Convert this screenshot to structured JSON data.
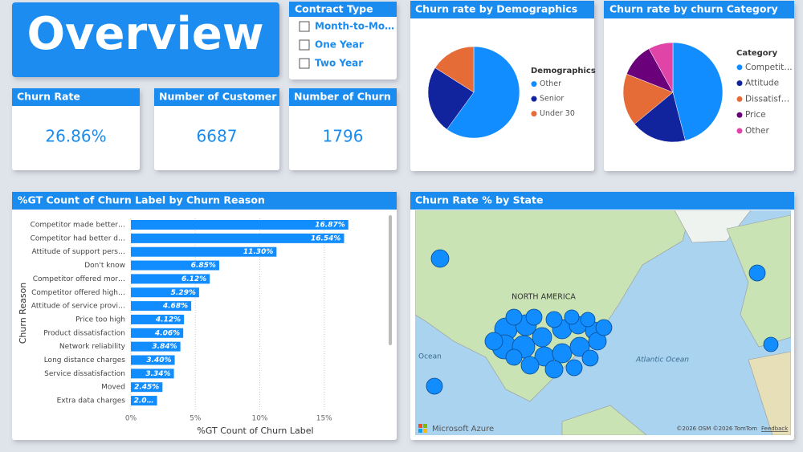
{
  "header": {
    "title": "Overview"
  },
  "slicer": {
    "title": "Contract Type",
    "items": [
      "Month-to-Mo…",
      "One Year",
      "Two Year"
    ]
  },
  "cards": [
    {
      "title": "Churn Rate",
      "value": "26.86%"
    },
    {
      "title": "Number of Customer",
      "value": "6687"
    },
    {
      "title": "Number of Churn",
      "value": "1796"
    }
  ],
  "chart_data": [
    {
      "type": "pie",
      "title": "Churn rate by Demographics",
      "legend_title": "Demographics",
      "categories": [
        "Other",
        "Senior",
        "Under 30"
      ],
      "values": [
        60,
        24,
        16
      ],
      "colors": [
        "#118DFF",
        "#12239E",
        "#E66C37"
      ]
    },
    {
      "type": "pie",
      "title": "Churn rate by churn Category",
      "legend_title": "Category",
      "categories": [
        "Competit…",
        "Attitude",
        "Dissatisf…",
        "Price",
        "Other"
      ],
      "values": [
        46,
        18,
        17,
        11,
        8
      ],
      "colors": [
        "#118DFF",
        "#12239E",
        "#E66C37",
        "#6B007B",
        "#E044A7"
      ]
    },
    {
      "type": "bar",
      "orientation": "horizontal",
      "title": "%GT Count of Churn Label by Churn Reason",
      "y_label": "Churn Reason",
      "x_label": "%GT Count of Churn Label",
      "categories": [
        "Competitor made better…",
        "Competitor had better d…",
        "Attitude of support pers…",
        "Don't know",
        "Competitor offered mor…",
        "Competitor offered high…",
        "Attitude of service provi…",
        "Price too high",
        "Product dissatisfaction",
        "Network reliability",
        "Long distance charges",
        "Service dissatisfaction",
        "Moved",
        "Extra data charges"
      ],
      "values": [
        16.87,
        16.54,
        11.3,
        6.85,
        6.12,
        5.29,
        4.68,
        4.12,
        4.06,
        3.84,
        3.4,
        3.34,
        2.45,
        2.03
      ],
      "value_labels": [
        "16.87%",
        "16.54%",
        "11.30%",
        "6.85%",
        "6.12%",
        "5.29%",
        "4.68%",
        "4.12%",
        "4.06%",
        "3.84%",
        "3.40%",
        "3.34%",
        "2.45%",
        "2.0…"
      ],
      "color": "#118DFF",
      "xlim": [
        0,
        20
      ],
      "xticks": [
        {
          "value": 0,
          "label": "0%"
        },
        {
          "value": 5,
          "label": "5%"
        },
        {
          "value": 10,
          "label": "10%"
        },
        {
          "value": 15,
          "label": "15%"
        }
      ],
      "grid": true
    }
  ],
  "map": {
    "title": "Churn Rate % by State",
    "labels": [
      "NORTH AMERICA",
      "Atlantic Ocean",
      "Ocean"
    ],
    "brand": "Microsoft Azure",
    "attribution": "©2026 OSM ©2026 TomTom",
    "feedback": "Feedback"
  }
}
